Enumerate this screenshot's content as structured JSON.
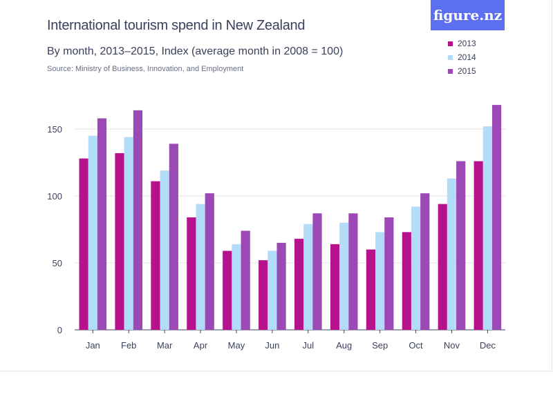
{
  "logo": {
    "text": "figure.nz"
  },
  "chart_data": {
    "type": "bar",
    "title": "International tourism spend in New Zealand",
    "subtitle": "By month, 2013–2015, Index (average month in 2008 = 100)",
    "source": "Source: Ministry of Business, Innovation, and Employment",
    "xlabel": "",
    "ylabel": "",
    "ylim": [
      0,
      175
    ],
    "yticks": [
      0,
      50,
      100,
      150
    ],
    "grid": true,
    "legend_position": "top-right",
    "categories": [
      "Jan",
      "Feb",
      "Mar",
      "Apr",
      "May",
      "Jun",
      "Jul",
      "Aug",
      "Sep",
      "Oct",
      "Nov",
      "Dec"
    ],
    "series": [
      {
        "name": "2013",
        "color": "#b5128c",
        "values": [
          128,
          132,
          111,
          84,
          59,
          52,
          68,
          64,
          60,
          73,
          94,
          126
        ]
      },
      {
        "name": "2014",
        "color": "#b3dbfa",
        "values": [
          145,
          144,
          119,
          94,
          64,
          59,
          79,
          80,
          73,
          92,
          113,
          152
        ]
      },
      {
        "name": "2015",
        "color": "#9b4ab5",
        "values": [
          158,
          164,
          139,
          102,
          74,
          65,
          87,
          87,
          84,
          102,
          126,
          168
        ]
      }
    ]
  }
}
